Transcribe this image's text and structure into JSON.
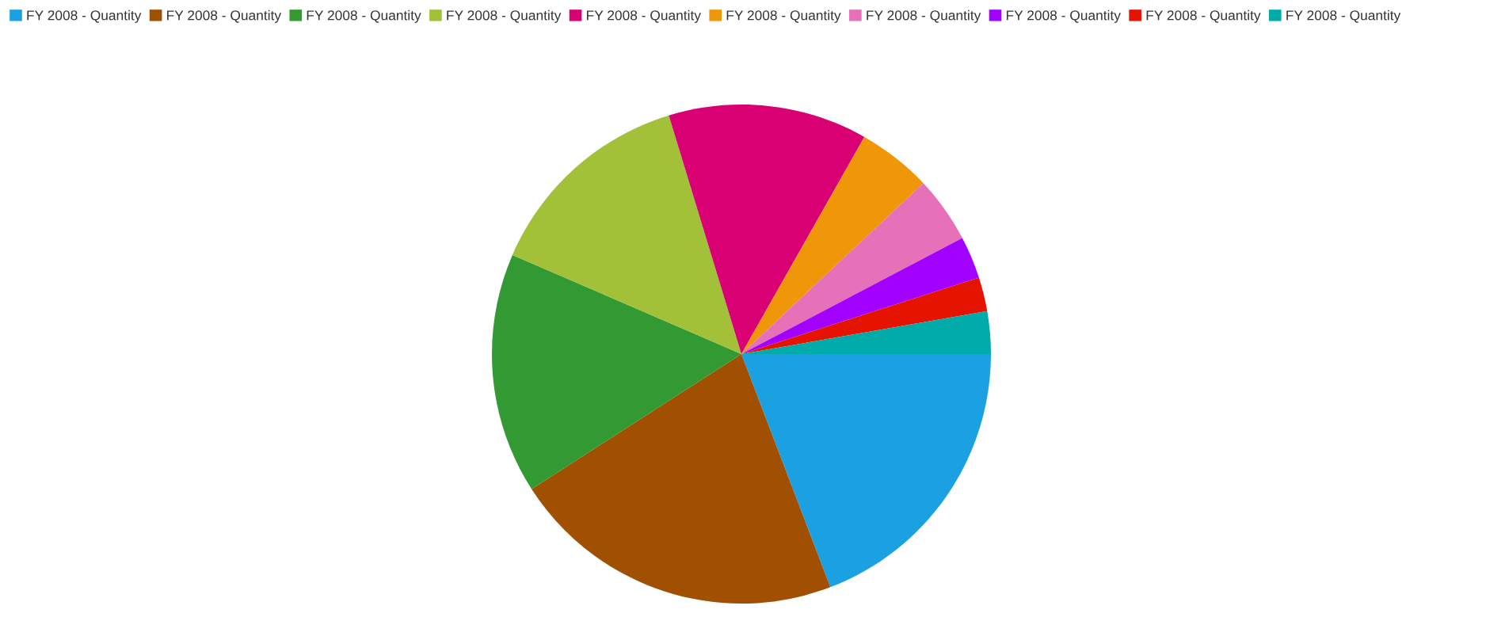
{
  "chart_data": {
    "type": "pie",
    "categories": [
      "FY 2008 - Quantity",
      "FY 2008 - Quantity",
      "FY 2008 - Quantity",
      "FY 2008 - Quantity",
      "FY 2008 - Quantity",
      "FY 2008 - Quantity",
      "FY 2008 - Quantity",
      "FY 2008 - Quantity",
      "FY 2008 - Quantity",
      "FY 2008 - Quantity"
    ],
    "values": [
      19.2,
      21.7,
      15.6,
      13.8,
      12.9,
      4.8,
      4.3,
      2.75,
      2.2,
      2.75
    ],
    "colors": [
      "#1ba1e2",
      "#a05000",
      "#339933",
      "#a2c139",
      "#d80073",
      "#f09609",
      "#e671b8",
      "#a200ff",
      "#e51400",
      "#00aba9"
    ],
    "legend": "top left"
  }
}
